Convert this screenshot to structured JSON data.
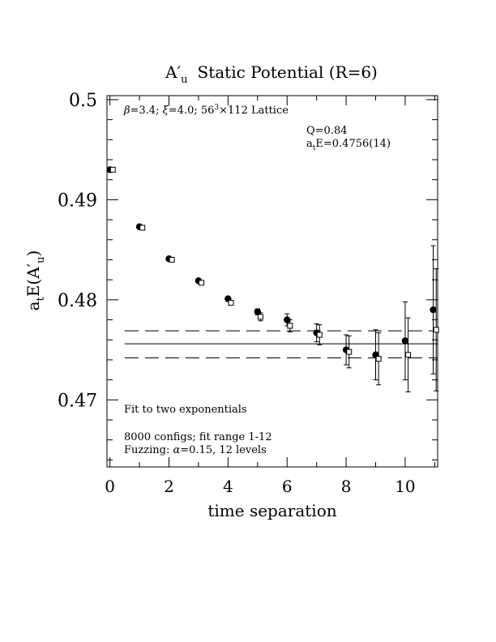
{
  "chart_data": {
    "type": "scatter",
    "title": {
      "main": "A",
      "prime": "′",
      "sub": "u",
      "rest": "Static Potential (R=6)"
    },
    "xlabel": "time separation",
    "ylabel": {
      "pre": "a",
      "sub1": "t",
      "mid": "E(A",
      "prime": "′",
      "sub2": "u",
      "post": ")"
    },
    "xlim": [
      -0.1,
      11.1
    ],
    "ylim": [
      0.4633,
      0.5004
    ],
    "x_ticks": [
      0,
      2,
      4,
      6,
      8,
      10
    ],
    "x_tick_labels": [
      "0",
      "2",
      "4",
      "6",
      "8",
      "10"
    ],
    "y_ticks": [
      0.47,
      0.48,
      0.49,
      0.5
    ],
    "y_tick_labels": [
      "0.47",
      "0.48",
      "0.49",
      "0.5"
    ],
    "annotations": {
      "lattice": {
        "beta": "β",
        "beta_val": "=3.4; ",
        "xi": "ξ",
        "xi_val": "=4.0; 56",
        "sup": "3",
        "rest": "×112 Lattice"
      },
      "q": "Q=0.84",
      "energy": {
        "pre": "a",
        "sub": "t",
        "post": "E=0.4756(14)"
      },
      "fit_label": "Fit to two exponentials",
      "configs": "8000 configs; fit range 1-12",
      "fuzzing": {
        "pre": "Fuzzing: ",
        "alpha": "α",
        "post": "=0.15, 12 levels"
      }
    },
    "series": [
      {
        "marker": "filled-circle",
        "points": [
          {
            "x": 0,
            "y": 0.493,
            "err": 0.0001
          },
          {
            "x": 1,
            "y": 0.4873,
            "err": 0.0001
          },
          {
            "x": 2,
            "y": 0.4841,
            "err": 0.0001
          },
          {
            "x": 3,
            "y": 0.4819,
            "err": 0.0001
          },
          {
            "x": 4,
            "y": 0.4801,
            "err": 0.0002
          },
          {
            "x": 5,
            "y": 0.4788,
            "err": 0.0003
          },
          {
            "x": 6,
            "y": 0.478,
            "err": 0.0006
          },
          {
            "x": 7,
            "y": 0.4767,
            "err": 0.0009
          },
          {
            "x": 8,
            "y": 0.475,
            "err": 0.0015
          },
          {
            "x": 9,
            "y": 0.4745,
            "err": 0.0025
          },
          {
            "x": 10,
            "y": 0.4759,
            "err": 0.0039
          },
          {
            "x": 10.95,
            "y": 0.479,
            "err": 0.0064
          }
        ]
      },
      {
        "marker": "open-square",
        "points": [
          {
            "x": 0.1,
            "y": 0.493,
            "err": 0.0001
          },
          {
            "x": 1.1,
            "y": 0.4872,
            "err": 0.0001
          },
          {
            "x": 2.1,
            "y": 0.484,
            "err": 0.0001
          },
          {
            "x": 3.1,
            "y": 0.4817,
            "err": 0.0001
          },
          {
            "x": 4.1,
            "y": 0.4797,
            "err": 0.0002
          },
          {
            "x": 5.1,
            "y": 0.4783,
            "err": 0.0004
          },
          {
            "x": 6.1,
            "y": 0.4774,
            "err": 0.0006
          },
          {
            "x": 7.1,
            "y": 0.4765,
            "err": 0.001
          },
          {
            "x": 8.1,
            "y": 0.4748,
            "err": 0.0016
          },
          {
            "x": 9.1,
            "y": 0.4741,
            "err": 0.0026
          },
          {
            "x": 10.1,
            "y": 0.4745,
            "err": 0.0037
          },
          {
            "x": 11.05,
            "y": 0.477,
            "err": 0.0061
          }
        ]
      }
    ],
    "fit": {
      "x_start": 0.5,
      "x_end": 11.1,
      "value": 0.4756,
      "upper": 0.4769,
      "lower": 0.4742
    }
  }
}
